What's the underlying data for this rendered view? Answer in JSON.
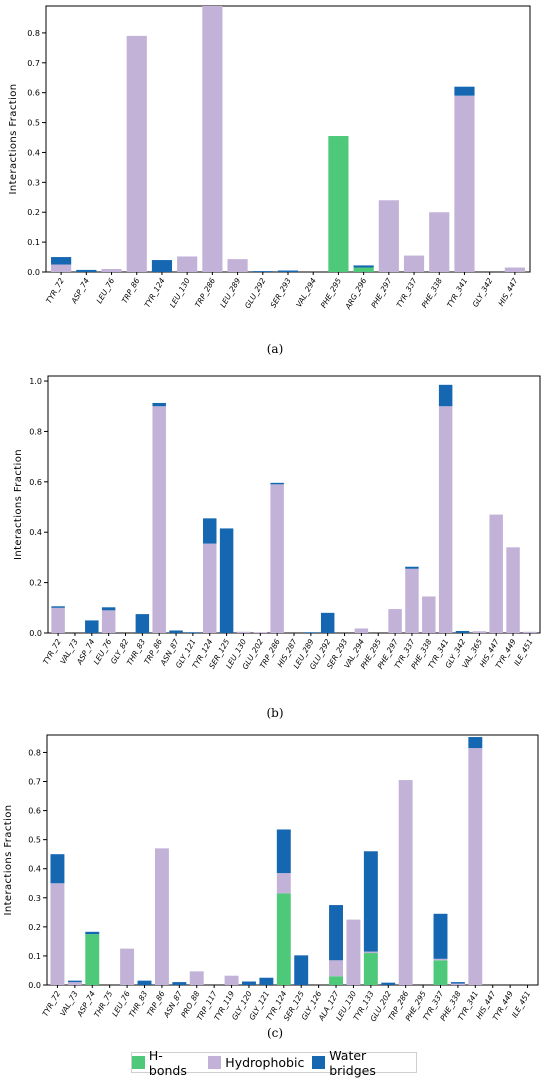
{
  "colors": {
    "hbonds": "#4ec97a",
    "hydrophobic": "#c3b2d8",
    "water_bridges": "#1667b1"
  },
  "legend": {
    "hbonds": "H-bonds",
    "hydrophobic": "Hydrophobic",
    "water_bridges": "Water bridges"
  },
  "chart_data": [
    {
      "type": "bar",
      "stacked": true,
      "panel_label": "(a)",
      "ylabel": "Interactions Fraction",
      "ylim": [
        0,
        0.89
      ],
      "yticks": [
        "0.0",
        "0.1",
        "0.2",
        "0.3",
        "0.4",
        "0.5",
        "0.6",
        "0.7",
        "0.8"
      ],
      "categories": [
        "TYR_72",
        "ASP_74",
        "LEU_76",
        "TRP_86",
        "TYR_124",
        "LEU_130",
        "TRP_286",
        "LEU_289",
        "GLU_292",
        "SER_293",
        "VAL_294",
        "PHE_295",
        "ARG_296",
        "PHE_297",
        "TYR_337",
        "PHE_338",
        "TYR_341",
        "GLY_342",
        "HIS_447"
      ],
      "series": [
        {
          "name": "H-bonds",
          "values": [
            0,
            0,
            0,
            0,
            0,
            0,
            0,
            0,
            0,
            0,
            0,
            0.455,
            0.015,
            0,
            0,
            0,
            0,
            0,
            0
          ]
        },
        {
          "name": "Hydrophobic",
          "values": [
            0.025,
            0,
            0.01,
            0.79,
            0,
            0.052,
            0.89,
            0.043,
            0,
            0,
            0,
            0,
            0,
            0.24,
            0.055,
            0.2,
            0.59,
            0,
            0.015
          ]
        },
        {
          "name": "Water bridges",
          "values": [
            0.025,
            0.007,
            0,
            0,
            0.04,
            0,
            0,
            0,
            0.003,
            0.005,
            0,
            0,
            0.007,
            0,
            0,
            0,
            0.03,
            0,
            0
          ]
        }
      ]
    },
    {
      "type": "bar",
      "stacked": true,
      "panel_label": "(b)",
      "ylabel": "Interactions Fraction",
      "ylim": [
        0,
        1.02
      ],
      "yticks": [
        "0.0",
        "0.2",
        "0.4",
        "0.6",
        "0.8",
        "1.0"
      ],
      "categories": [
        "TYR_72",
        "VAL_73",
        "ASP_74",
        "LEU_76",
        "GLY_82",
        "THR_83",
        "TRP_86",
        "ASN_87",
        "GLY_121",
        "TYR_124",
        "SER_125",
        "LEU_130",
        "GLU_202",
        "TRP_286",
        "HIS_287",
        "LEU_289",
        "GLU_292",
        "SER_293",
        "VAL_294",
        "PHE_295",
        "PHE_297",
        "TYR_337",
        "PHE_338",
        "TYR_341",
        "GLY_342",
        "VAL_365",
        "HIS_447",
        "TYR_449",
        "ILE_451"
      ],
      "series": [
        {
          "name": "H-bonds",
          "values": [
            0,
            0,
            0,
            0,
            0,
            0,
            0,
            0,
            0,
            0,
            0,
            0,
            0,
            0,
            0,
            0,
            0,
            0,
            0,
            0,
            0,
            0,
            0,
            0,
            0,
            0,
            0,
            0,
            0
          ]
        },
        {
          "name": "Hydrophobic",
          "values": [
            0.1,
            0,
            0,
            0.09,
            0,
            0,
            0.9,
            0,
            0,
            0.355,
            0,
            0.005,
            0.003,
            0.59,
            0,
            0,
            0,
            0,
            0.018,
            0,
            0.095,
            0.255,
            0.145,
            0.9,
            0,
            0.007,
            0.47,
            0.34,
            0.005
          ]
        },
        {
          "name": "Water bridges",
          "values": [
            0.006,
            0,
            0.05,
            0.012,
            0,
            0.075,
            0.013,
            0.01,
            0.003,
            0.1,
            0.415,
            0,
            0,
            0.006,
            0,
            0.003,
            0.08,
            0,
            0,
            0,
            0,
            0.008,
            0,
            0.085,
            0.008,
            0,
            0,
            0,
            0
          ]
        }
      ]
    },
    {
      "type": "bar",
      "stacked": true,
      "panel_label": "(c)",
      "ylabel": "Interactions Fraction",
      "ylim": [
        0,
        0.86
      ],
      "yticks": [
        "0.0",
        "0.1",
        "0.2",
        "0.3",
        "0.4",
        "0.5",
        "0.6",
        "0.7",
        "0.8"
      ],
      "categories": [
        "TYR_72",
        "VAL_73",
        "ASP_74",
        "THR_75",
        "LEU_76",
        "THR_83",
        "TRP_86",
        "ASN_87",
        "PRO_88",
        "TRP_117",
        "TYR_119",
        "GLY_120",
        "GLY_121",
        "TYR_124",
        "SER_125",
        "GLY_126",
        "ALA_127",
        "LEU_130",
        "TYR_133",
        "GLU_202",
        "TRP_286",
        "PHE_295",
        "TYR_337",
        "PHE_338",
        "TYR_341",
        "HIS_447",
        "TYR_449",
        "ILE_451"
      ],
      "series": [
        {
          "name": "H-bonds",
          "values": [
            0,
            0,
            0.175,
            0,
            0,
            0,
            0,
            0,
            0,
            0,
            0,
            0,
            0,
            0.315,
            0,
            0,
            0.03,
            0,
            0.11,
            0,
            0,
            0,
            0.085,
            0,
            0,
            0,
            0,
            0
          ]
        },
        {
          "name": "Hydrophobic",
          "values": [
            0.35,
            0.01,
            0,
            0,
            0.125,
            0,
            0.47,
            0,
            0.047,
            0,
            0.032,
            0,
            0,
            0.07,
            0,
            0,
            0.055,
            0.225,
            0.005,
            0,
            0.705,
            0,
            0.005,
            0.005,
            0.815,
            0,
            0,
            0
          ]
        },
        {
          "name": "Water bridges",
          "values": [
            0.1,
            0.005,
            0.008,
            0,
            0,
            0.015,
            0,
            0.01,
            0,
            0,
            0,
            0.012,
            0.025,
            0.15,
            0.102,
            0,
            0.19,
            0,
            0.345,
            0.008,
            0,
            0,
            0.155,
            0.005,
            0.038,
            0,
            0,
            0
          ]
        }
      ]
    }
  ]
}
